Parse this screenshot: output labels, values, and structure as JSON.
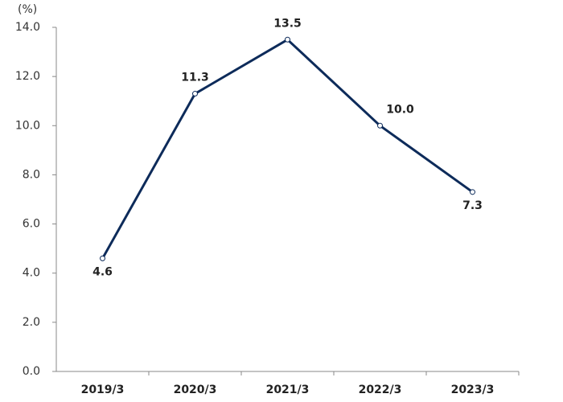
{
  "chart_data": {
    "type": "line",
    "y_label": "(%)",
    "categories": [
      "2019/3",
      "2020/3",
      "2021/3",
      "2022/3",
      "2023/3"
    ],
    "values": [
      4.6,
      11.3,
      13.5,
      10.0,
      7.3
    ],
    "value_labels": [
      "4.6",
      "11.3",
      "13.5",
      "10.0",
      "7.3"
    ],
    "color": "#0d2b5a",
    "ylim": [
      0,
      14
    ],
    "yticks": [
      {
        "value": 0,
        "label": "0.0"
      },
      {
        "value": 2,
        "label": "2.0"
      },
      {
        "value": 4,
        "label": "4.0"
      },
      {
        "value": 6,
        "label": "6.0"
      },
      {
        "value": 8,
        "label": "8.0"
      },
      {
        "value": 10,
        "label": "10.0"
      },
      {
        "value": 12,
        "label": "12.0"
      },
      {
        "value": 14,
        "label": "14.0"
      }
    ]
  }
}
